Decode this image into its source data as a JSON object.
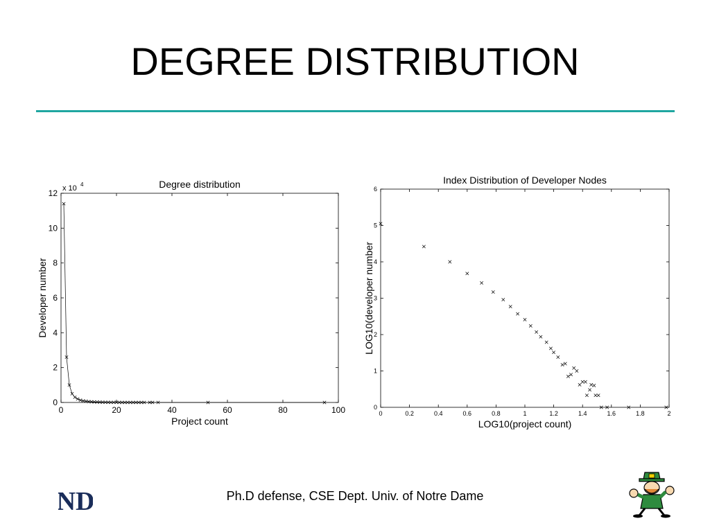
{
  "slide": {
    "title": "DEGREE DISTRIBUTION",
    "footer": "Ph.D defense, CSE Dept. Univ. of Notre Dame",
    "rule_color": "#1fa6a0",
    "logo_left": {
      "icon": "nd-monogram-icon",
      "text": "ND",
      "color": "#1a2d5a"
    },
    "logo_right": {
      "icon": "leprechaun-mascot-icon"
    }
  },
  "chart_data": [
    {
      "type": "line",
      "title": "Degree distribution",
      "xlabel": "Project count",
      "ylabel": "Developer number",
      "y_multiplier_label": "x 10",
      "y_multiplier_exp": "4",
      "xlim": [
        0,
        100
      ],
      "ylim": [
        0,
        12
      ],
      "x_ticks": [
        "0",
        "20",
        "40",
        "60",
        "80",
        "100"
      ],
      "y_ticks": [
        "0",
        "2",
        "4",
        "6",
        "8",
        "10",
        "12"
      ],
      "x_tick_values": [
        0,
        20,
        40,
        60,
        80,
        100
      ],
      "y_tick_values": [
        0,
        2,
        4,
        6,
        8,
        10,
        12
      ],
      "marker": "x",
      "grid": false,
      "series": [
        {
          "x": [
            1,
            2,
            3,
            4,
            5,
            6,
            7,
            8,
            9,
            10,
            11,
            12,
            13,
            14,
            15,
            16,
            17,
            18,
            19,
            20,
            21,
            22,
            23,
            24,
            25,
            26,
            27,
            28,
            29,
            30,
            32,
            33,
            35,
            53,
            95
          ],
          "y": [
            11.4,
            2.6,
            1.0,
            0.5,
            0.3,
            0.2,
            0.13,
            0.09,
            0.07,
            0.05,
            0.04,
            0.03,
            0.025,
            0.02,
            0.015,
            0.012,
            0.01,
            0.008,
            0.007,
            0.006,
            0.005,
            0.004,
            0.003,
            0.003,
            0.002,
            0.002,
            0.002,
            0.001,
            0.001,
            0.001,
            0.001,
            0.001,
            0.0005,
            0.0001,
            0.0001
          ]
        }
      ]
    },
    {
      "type": "scatter",
      "title": "Index Distribution of Developer Nodes",
      "xlabel": "LOG10(project count)",
      "ylabel": "LOG10(developer number",
      "xlim": [
        0,
        2
      ],
      "ylim": [
        0,
        6
      ],
      "x_ticks": [
        "0",
        "0.2",
        "0.4",
        "0.6",
        "0.8",
        "1",
        "1.2",
        "1.4",
        "1.6",
        "1.8",
        "2"
      ],
      "y_ticks": [
        "0",
        "1",
        "2",
        "3",
        "4",
        "5",
        "6"
      ],
      "x_tick_values": [
        0,
        0.2,
        0.4,
        0.6,
        0.8,
        1,
        1.2,
        1.4,
        1.6,
        1.8,
        2
      ],
      "y_tick_values": [
        0,
        1,
        2,
        3,
        4,
        5,
        6
      ],
      "marker": "x",
      "grid": false,
      "series": [
        {
          "x": [
            0,
            0.3,
            0.48,
            0.6,
            0.7,
            0.78,
            0.85,
            0.9,
            0.95,
            1.0,
            1.04,
            1.08,
            1.11,
            1.15,
            1.18,
            1.2,
            1.23,
            1.26,
            1.28,
            1.3,
            1.32,
            1.34,
            1.36,
            1.38,
            1.4,
            1.42,
            1.43,
            1.45,
            1.46,
            1.48,
            1.49,
            1.51,
            1.53,
            1.57,
            1.72,
            1.98
          ],
          "y": [
            5.05,
            4.42,
            4.0,
            3.68,
            3.42,
            3.17,
            2.96,
            2.77,
            2.57,
            2.41,
            2.24,
            2.07,
            1.94,
            1.79,
            1.62,
            1.51,
            1.38,
            1.17,
            1.2,
            0.85,
            0.9,
            1.08,
            1.0,
            0.62,
            0.7,
            0.7,
            0.33,
            0.48,
            0.62,
            0.6,
            0.33,
            0.33,
            0.0,
            0.0,
            0.0,
            0.0
          ]
        }
      ]
    }
  ]
}
